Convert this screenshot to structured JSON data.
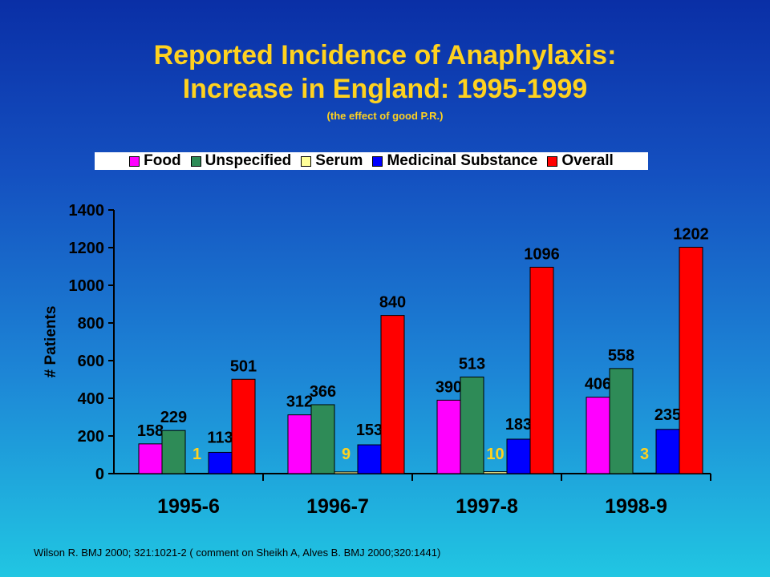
{
  "title": "Reported Incidence of Anaphylaxis:",
  "subtitle": "Increase in England: 1995-1999",
  "note": "(the effect of good P.R.)",
  "citation": "Wilson R. BMJ 2000; 321:1021-2 ( comment on Sheikh A, Alves B. BMJ 2000;320:1441)",
  "chart_data": {
    "type": "bar",
    "categories": [
      "1995-6",
      "1996-7",
      "1997-8",
      "1998-9"
    ],
    "series": [
      {
        "name": "Food",
        "color": "#ff00ff",
        "values": [
          158,
          312,
          390,
          406
        ]
      },
      {
        "name": "Unspecified",
        "color": "#2e8b57",
        "values": [
          229,
          366,
          513,
          558
        ]
      },
      {
        "name": "Serum",
        "color": "#ffff99",
        "values": [
          1,
          9,
          10,
          3
        ]
      },
      {
        "name": "Medicinal Substance",
        "color": "#0000ff",
        "values": [
          113,
          153,
          183,
          235
        ]
      },
      {
        "name": "Overall",
        "color": "#ff0000",
        "values": [
          501,
          840,
          1096,
          1202
        ]
      }
    ],
    "ylabel": "# Patients",
    "xlabel": "",
    "ylim": [
      0,
      1400
    ],
    "yticks": [
      0,
      200,
      400,
      600,
      800,
      1000,
      1200,
      1400
    ],
    "legend_position": "top",
    "label_color": "#000000",
    "serum_label_color": "#ffd21f"
  }
}
